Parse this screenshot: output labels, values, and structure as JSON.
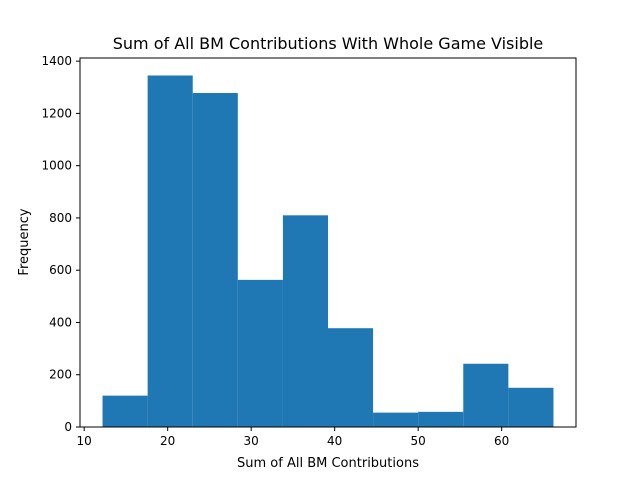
{
  "chart_data": {
    "type": "bar",
    "subtype": "histogram",
    "title": "Sum of All BM Contributions With Whole Game Visible",
    "xlabel": "Sum of All BM Contributions",
    "ylabel": "Frequency",
    "bins": [
      {
        "x0": 12.2,
        "x1": 17.6,
        "value": 120
      },
      {
        "x0": 17.6,
        "x1": 23.0,
        "value": 1345
      },
      {
        "x0": 23.0,
        "x1": 28.4,
        "value": 1278
      },
      {
        "x0": 28.4,
        "x1": 33.8,
        "value": 563
      },
      {
        "x0": 33.8,
        "x1": 39.2,
        "value": 810
      },
      {
        "x0": 39.2,
        "x1": 44.6,
        "value": 378
      },
      {
        "x0": 44.6,
        "x1": 50.0,
        "value": 55
      },
      {
        "x0": 50.0,
        "x1": 55.4,
        "value": 58
      },
      {
        "x0": 55.4,
        "x1": 60.8,
        "value": 242
      },
      {
        "x0": 60.8,
        "x1": 66.2,
        "value": 150
      }
    ],
    "xlim": [
      9.5,
      68.9
    ],
    "ylim": [
      0,
      1412
    ],
    "xticks": [
      10,
      20,
      30,
      40,
      50,
      60
    ],
    "yticks": [
      0,
      200,
      400,
      600,
      800,
      1000,
      1200,
      1400
    ],
    "bar_color": "#1f77b4",
    "grid": false,
    "legend": "none"
  }
}
